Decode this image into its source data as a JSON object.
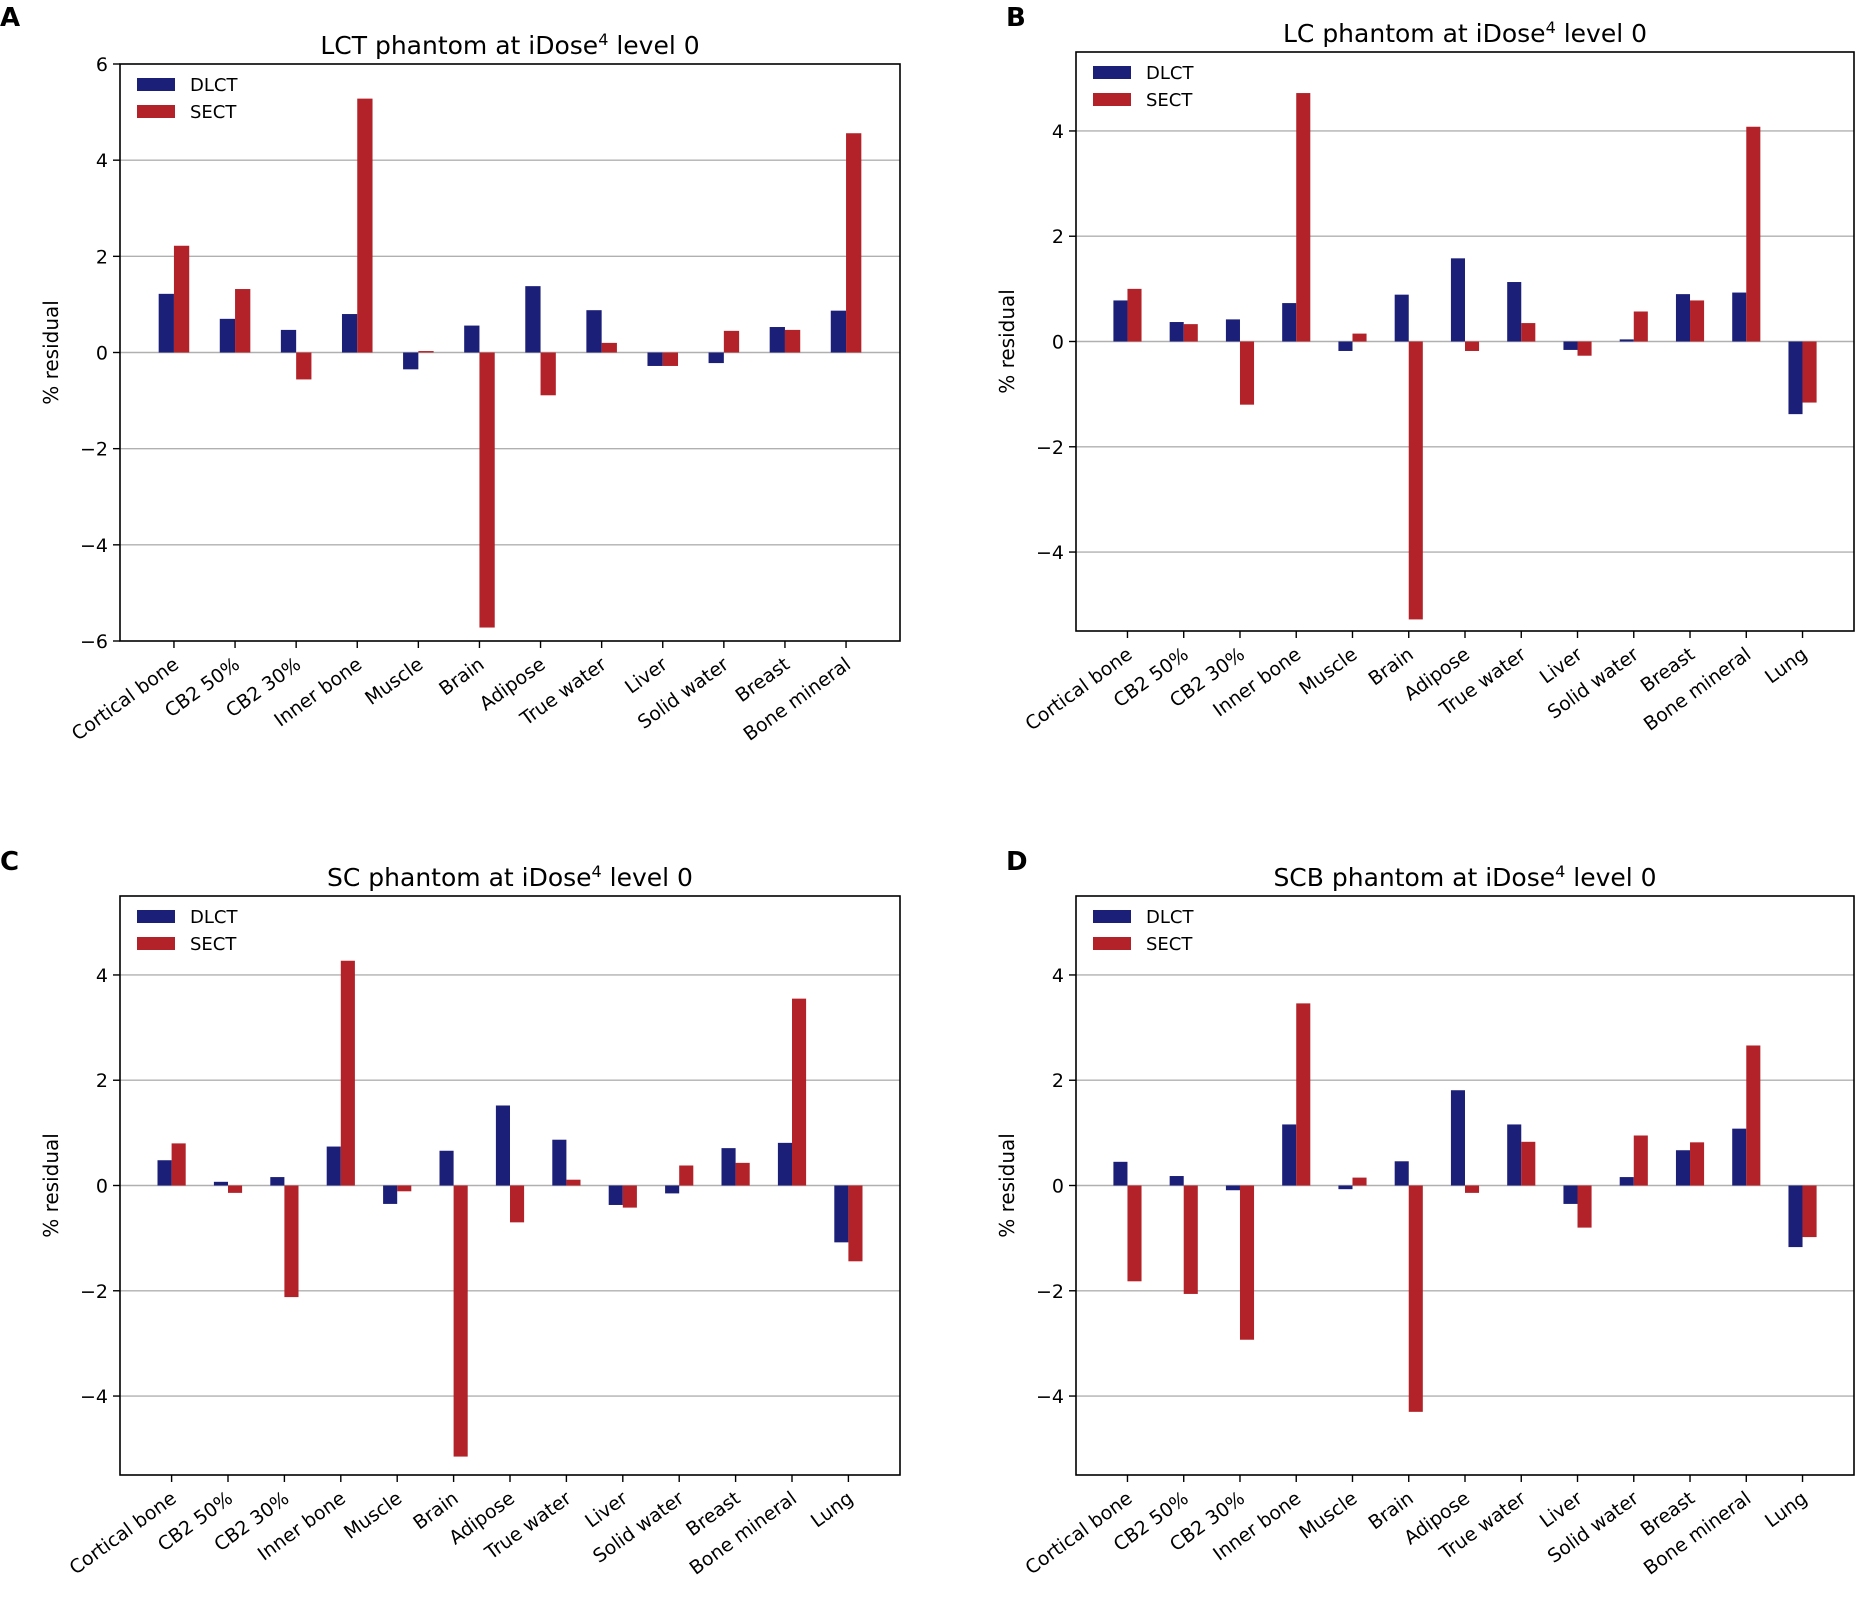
{
  "figure": {
    "series_names": [
      "DLCT",
      "SECT"
    ],
    "series_colors": [
      "#1b1f78",
      "#b22228"
    ]
  },
  "chart_data": [
    {
      "panel": "A",
      "type": "bar",
      "title_main": "LCT phantom at iDose",
      "title_sup": "4",
      "title_tail": " level 0",
      "xlabel": "",
      "ylabel": "% residual",
      "ylim": [
        -6,
        6
      ],
      "yticks": [
        -6,
        -4,
        -2,
        0,
        2,
        4,
        6
      ],
      "ytick_labels": [
        "−6",
        "−4",
        "−2",
        "0",
        "2",
        "4",
        "6"
      ],
      "grid": true,
      "legend": "top-left",
      "categories": [
        "Cortical bone",
        "CB2 50%",
        "CB2 30%",
        "Inner bone",
        "Muscle",
        "Brain",
        "Adipose",
        "True water",
        "Liver",
        "Solid water",
        "Breast",
        "Bone mineral"
      ],
      "series": [
        {
          "name": "DLCT",
          "values": [
            1.22,
            0.7,
            0.47,
            0.8,
            -0.35,
            0.56,
            1.38,
            0.88,
            -0.28,
            -0.22,
            0.53,
            0.87
          ]
        },
        {
          "name": "SECT",
          "values": [
            2.22,
            1.32,
            -0.56,
            5.28,
            0.03,
            -5.72,
            -0.89,
            0.2,
            -0.28,
            0.45,
            0.47,
            4.56
          ]
        }
      ]
    },
    {
      "panel": "B",
      "type": "bar",
      "title_main": "LC phantom at iDose",
      "title_sup": "4",
      "title_tail": " level 0",
      "xlabel": "",
      "ylabel": "% residual",
      "ylim": [
        -5.5,
        5.5
      ],
      "yticks": [
        -4,
        -2,
        0,
        2,
        4
      ],
      "ytick_labels": [
        "−4",
        "−2",
        "0",
        "2",
        "4"
      ],
      "grid": true,
      "legend": "top-left",
      "categories": [
        "Cortical bone",
        "CB2 50%",
        "CB2 30%",
        "Inner bone",
        "Muscle",
        "Brain",
        "Adipose",
        "True water",
        "Liver",
        "Solid water",
        "Breast",
        "Bone mineral",
        "Lung"
      ],
      "series": [
        {
          "name": "DLCT",
          "values": [
            0.78,
            0.37,
            0.42,
            0.73,
            -0.18,
            0.89,
            1.58,
            1.13,
            -0.16,
            0.04,
            0.9,
            0.93,
            -1.38
          ]
        },
        {
          "name": "SECT",
          "values": [
            1.0,
            0.33,
            -1.2,
            4.72,
            0.15,
            -5.28,
            -0.18,
            0.35,
            -0.27,
            0.57,
            0.78,
            4.08,
            -1.16
          ]
        }
      ]
    },
    {
      "panel": "C",
      "type": "bar",
      "title_main": "SC phantom at iDose",
      "title_sup": "4",
      "title_tail": " level 0",
      "xlabel": "",
      "ylabel": "% residual",
      "ylim": [
        -5.5,
        5.5
      ],
      "yticks": [
        -4,
        -2,
        0,
        2,
        4
      ],
      "ytick_labels": [
        "−4",
        "−2",
        "0",
        "2",
        "4"
      ],
      "grid": true,
      "legend": "top-left",
      "categories": [
        "Cortical bone",
        "CB2 50%",
        "CB2 30%",
        "Inner bone",
        "Muscle",
        "Brain",
        "Adipose",
        "True water",
        "Liver",
        "Solid water",
        "Breast",
        "Bone mineral",
        "Lung"
      ],
      "series": [
        {
          "name": "DLCT",
          "values": [
            0.48,
            0.07,
            0.16,
            0.74,
            -0.35,
            0.66,
            1.52,
            0.87,
            -0.37,
            -0.15,
            0.71,
            0.81,
            -1.08
          ]
        },
        {
          "name": "SECT",
          "values": [
            0.8,
            -0.14,
            -2.12,
            4.27,
            -0.11,
            -5.15,
            -0.7,
            0.11,
            -0.42,
            0.38,
            0.43,
            3.55,
            -1.44
          ]
        }
      ]
    },
    {
      "panel": "D",
      "type": "bar",
      "title_main": "SCB phantom at iDose",
      "title_sup": "4",
      "title_tail": " level 0",
      "xlabel": "",
      "ylabel": "% residual",
      "ylim": [
        -5.5,
        5.5
      ],
      "yticks": [
        -4,
        -2,
        0,
        2,
        4
      ],
      "ytick_labels": [
        "−4",
        "−2",
        "0",
        "2",
        "4"
      ],
      "grid": true,
      "legend": "top-left",
      "categories": [
        "Cortical bone",
        "CB2 50%",
        "CB2 30%",
        "Inner bone",
        "Muscle",
        "Brain",
        "Adipose",
        "True water",
        "Liver",
        "Solid water",
        "Breast",
        "Bone mineral",
        "Lung"
      ],
      "series": [
        {
          "name": "DLCT",
          "values": [
            0.45,
            0.18,
            -0.09,
            1.16,
            -0.07,
            0.46,
            1.81,
            1.16,
            -0.35,
            0.16,
            0.67,
            1.08,
            -1.17
          ]
        },
        {
          "name": "SECT",
          "values": [
            -1.82,
            -2.06,
            -2.93,
            3.46,
            0.15,
            -4.3,
            -0.14,
            0.83,
            -0.8,
            0.95,
            0.82,
            2.66,
            -0.98
          ]
        }
      ]
    }
  ]
}
